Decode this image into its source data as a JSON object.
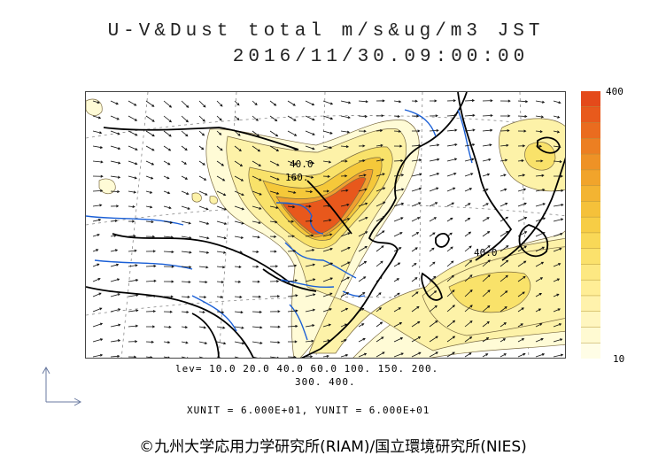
{
  "header": {
    "title_line1": "U-V&Dust total m/s&ug/m3 JST",
    "title_line2": "2016/11/30.09:00:00"
  },
  "map": {
    "contour_labels": [
      "40.0",
      "160.",
      "40.0"
    ],
    "fill_colors": [
      "#fffbd6",
      "#fdf2a8",
      "#f9e26a",
      "#f5c83a",
      "#f0a030",
      "#ec7a25",
      "#e8581c"
    ]
  },
  "colorbar": {
    "max_label": "400",
    "min_label": "10",
    "colors": [
      "#fffde6",
      "#fffad2",
      "#fff6bf",
      "#fff2ac",
      "#ffee96",
      "#fde882",
      "#fbe16c",
      "#f9d857",
      "#f7cd45",
      "#f5c13a",
      "#f3b432",
      "#f1a42b",
      "#ee9226",
      "#ec7f22",
      "#ea6c1f",
      "#e85a1c",
      "#e44a1a"
    ]
  },
  "footer": {
    "lev_line1": "lev= 10.0 20.0 40.0 60.0 100. 150. 200.",
    "lev_line2": "300. 400.",
    "unit_line": "XUNIT = 6.000E+01, YUNIT = 6.000E+01",
    "copyright": "©九州大学応用力学研究所(RIAM)/国立環境研究所(NIES)"
  }
}
